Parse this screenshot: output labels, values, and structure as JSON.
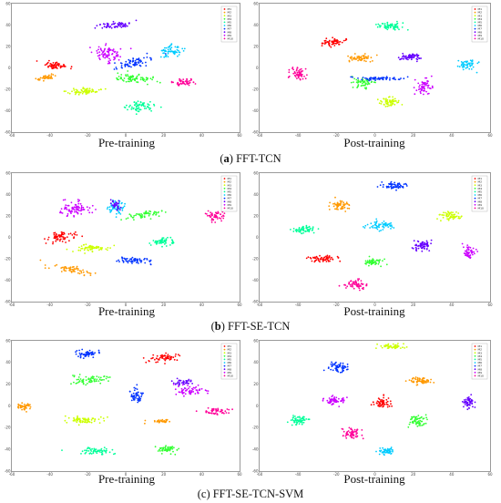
{
  "colors": [
    "#ff0000",
    "#ff9900",
    "#ccff00",
    "#33ff33",
    "#00ff99",
    "#00ccff",
    "#0033ff",
    "#6600ff",
    "#cc00ff",
    "#ff0099"
  ],
  "legend_labels": [
    "M1",
    "M2",
    "M3",
    "M4",
    "M5",
    "M6",
    "M7",
    "M8",
    "M9",
    "M10"
  ],
  "sub_labels": {
    "pre": "Pre-training",
    "post": "Post-training"
  },
  "captions": [
    {
      "letter": "a",
      "text": " FFT-TCN"
    },
    {
      "letter": "b",
      "text": " FFT-SE-TCN"
    },
    {
      "letter": "c",
      "text": " FFT-SE-TCN-SVM"
    }
  ],
  "chart_data": [
    {
      "type": "scatter",
      "model": "FFT-TCN",
      "stage": "Pre-training",
      "xlim": [
        -60,
        60
      ],
      "ylim": [
        -60,
        60
      ],
      "x_ticks": [
        "-60",
        "-40",
        "-20",
        "0",
        "20",
        "40",
        "60"
      ],
      "y_ticks": [
        "60",
        "40",
        "20",
        "0",
        "-20",
        "-40",
        "-60"
      ],
      "clusters": [
        {
          "label": "M1",
          "x": -37,
          "y": 2,
          "sx": 6,
          "sy": 3,
          "rot": -15,
          "n": 60
        },
        {
          "label": "M2",
          "x": -42,
          "y": -9,
          "sx": 6,
          "sy": 2,
          "rot": 20,
          "n": 40
        },
        {
          "label": "M3",
          "x": -22,
          "y": -22,
          "sx": 8,
          "sy": 3,
          "rot": 0,
          "n": 70
        },
        {
          "label": "M4",
          "x": 4,
          "y": -10,
          "sx": 9,
          "sy": 4,
          "rot": -10,
          "n": 80
        },
        {
          "label": "M5",
          "x": 8,
          "y": -36,
          "sx": 7,
          "sy": 4,
          "rot": 0,
          "n": 70
        },
        {
          "label": "M6",
          "x": 24,
          "y": 16,
          "sx": 5,
          "sy": 5,
          "rot": 0,
          "n": 60
        },
        {
          "label": "M7",
          "x": 5,
          "y": 5,
          "sx": 9,
          "sy": 3,
          "rot": 25,
          "n": 70
        },
        {
          "label": "M8",
          "x": -6,
          "y": 40,
          "sx": 8,
          "sy": 3,
          "rot": 10,
          "n": 60
        },
        {
          "label": "M9",
          "x": -10,
          "y": 14,
          "sx": 7,
          "sy": 7,
          "rot": 0,
          "n": 80
        },
        {
          "label": "M10",
          "x": 31,
          "y": -13,
          "sx": 6,
          "sy": 3,
          "rot": 10,
          "n": 50
        }
      ]
    },
    {
      "type": "scatter",
      "model": "FFT-TCN",
      "stage": "Post-training",
      "xlim": [
        -60,
        60
      ],
      "ylim": [
        -60,
        60
      ],
      "x_ticks": [
        "-60",
        "-40",
        "-20",
        "0",
        "20",
        "40",
        "60"
      ],
      "y_ticks": [
        "60",
        "40",
        "20",
        "0",
        "-20",
        "-40",
        "-60"
      ],
      "clusters": [
        {
          "label": "M1",
          "x": -22,
          "y": 24,
          "sx": 6,
          "sy": 3,
          "rot": 15,
          "n": 60
        },
        {
          "label": "M2",
          "x": -7,
          "y": 9,
          "sx": 6,
          "sy": 3,
          "rot": 0,
          "n": 60
        },
        {
          "label": "M3",
          "x": 8,
          "y": -32,
          "sx": 5,
          "sy": 4,
          "rot": 0,
          "n": 60
        },
        {
          "label": "M4",
          "x": -6,
          "y": -14,
          "sx": 6,
          "sy": 4,
          "rot": 0,
          "n": 60
        },
        {
          "label": "M5",
          "x": 8,
          "y": 39,
          "sx": 6,
          "sy": 3,
          "rot": 0,
          "n": 60
        },
        {
          "label": "M6",
          "x": 48,
          "y": 3,
          "sx": 4,
          "sy": 4,
          "rot": 0,
          "n": 50
        },
        {
          "label": "M7",
          "x": 2,
          "y": -10,
          "sx": 12,
          "sy": 1.5,
          "rot": 0,
          "n": 60
        },
        {
          "label": "M8",
          "x": 19,
          "y": 10,
          "sx": 5,
          "sy": 3,
          "rot": 0,
          "n": 60
        },
        {
          "label": "M9",
          "x": 26,
          "y": -17,
          "sx": 4,
          "sy": 6,
          "rot": 0,
          "n": 60
        },
        {
          "label": "M10",
          "x": -40,
          "y": -6,
          "sx": 4,
          "sy": 5,
          "rot": 0,
          "n": 60
        }
      ]
    },
    {
      "type": "scatter",
      "model": "FFT-SE-TCN",
      "stage": "Pre-training",
      "xlim": [
        -60,
        60
      ],
      "ylim": [
        -60,
        60
      ],
      "x_ticks": [
        "-60",
        "-40",
        "-20",
        "0",
        "20",
        "40",
        "60"
      ],
      "y_ticks": [
        "60",
        "40",
        "20",
        "0",
        "-20",
        "-40",
        "-60"
      ],
      "clusters": [
        {
          "label": "M1",
          "x": -35,
          "y": 0,
          "sx": 7,
          "sy": 4,
          "rot": 15,
          "n": 70
        },
        {
          "label": "M2",
          "x": -28,
          "y": -30,
          "sx": 9,
          "sy": 3,
          "rot": -20,
          "n": 60
        },
        {
          "label": "M3",
          "x": -17,
          "y": -10,
          "sx": 8,
          "sy": 3,
          "rot": 0,
          "n": 60
        },
        {
          "label": "M4",
          "x": 10,
          "y": 21,
          "sx": 10,
          "sy": 3,
          "rot": 15,
          "n": 60
        },
        {
          "label": "M5",
          "x": 20,
          "y": -4,
          "sx": 6,
          "sy": 3,
          "rot": 0,
          "n": 60
        },
        {
          "label": "M6",
          "x": -5,
          "y": 28,
          "sx": 4,
          "sy": 6,
          "rot": 0,
          "n": 60
        },
        {
          "label": "M7",
          "x": 4,
          "y": -22,
          "sx": 7,
          "sy": 3,
          "rot": -10,
          "n": 60
        },
        {
          "label": "M8",
          "x": -5,
          "y": 30,
          "sx": 3,
          "sy": 5,
          "rot": 0,
          "n": 30
        },
        {
          "label": "M9",
          "x": -27,
          "y": 26,
          "sx": 7,
          "sy": 6,
          "rot": 0,
          "n": 80
        },
        {
          "label": "M10",
          "x": 47,
          "y": 20,
          "sx": 5,
          "sy": 5,
          "rot": 0,
          "n": 50
        }
      ]
    },
    {
      "type": "scatter",
      "model": "FFT-SE-TCN",
      "stage": "Post-training",
      "xlim": [
        -60,
        60
      ],
      "ylim": [
        -60,
        60
      ],
      "x_ticks": [
        "-60",
        "-40",
        "-20",
        "0",
        "20",
        "40",
        "60"
      ],
      "y_ticks": [
        "60",
        "40",
        "20",
        "0",
        "-20",
        "-40",
        "-60"
      ],
      "clusters": [
        {
          "label": "M1",
          "x": -27,
          "y": -20,
          "sx": 7,
          "sy": 3,
          "rot": 0,
          "n": 60
        },
        {
          "label": "M2",
          "x": -18,
          "y": 30,
          "sx": 5,
          "sy": 4,
          "rot": 0,
          "n": 60
        },
        {
          "label": "M3",
          "x": 39,
          "y": 20,
          "sx": 5,
          "sy": 4,
          "rot": 0,
          "n": 60
        },
        {
          "label": "M4",
          "x": -1,
          "y": -23,
          "sx": 5,
          "sy": 3,
          "rot": 0,
          "n": 60
        },
        {
          "label": "M5",
          "x": -37,
          "y": 7,
          "sx": 5,
          "sy": 3,
          "rot": 0,
          "n": 60
        },
        {
          "label": "M6",
          "x": 3,
          "y": 11,
          "sx": 6,
          "sy": 4,
          "rot": 0,
          "n": 60
        },
        {
          "label": "M7",
          "x": 10,
          "y": 48,
          "sx": 6,
          "sy": 3,
          "rot": 0,
          "n": 60
        },
        {
          "label": "M8",
          "x": 25,
          "y": -8,
          "sx": 4,
          "sy": 5,
          "rot": 0,
          "n": 60
        },
        {
          "label": "M9",
          "x": 49,
          "y": -13,
          "sx": 3,
          "sy": 6,
          "rot": 0,
          "n": 50
        },
        {
          "label": "M10",
          "x": -10,
          "y": -44,
          "sx": 5,
          "sy": 4,
          "rot": 0,
          "n": 60
        }
      ]
    },
    {
      "type": "scatter",
      "model": "FFT-SE-TCN-SVM",
      "stage": "Pre-training",
      "xlim": [
        -60,
        60
      ],
      "ylim": [
        -60,
        60
      ],
      "x_ticks": [
        "-60",
        "-40",
        "-20",
        "0",
        "20",
        "40",
        "60"
      ],
      "y_ticks": [
        "60",
        "40",
        "20",
        "0",
        "-20",
        "-40",
        "-60"
      ],
      "clusters": [
        {
          "label": "M1",
          "x": 20,
          "y": 44,
          "sx": 8,
          "sy": 3,
          "rot": 10,
          "n": 60
        },
        {
          "label": "M2",
          "x": -54,
          "y": 0,
          "sx": 4,
          "sy": 3,
          "rot": 0,
          "n": 40
        },
        {
          "label": "M2",
          "x": 18,
          "y": -14,
          "sx": 6,
          "sy": 1.5,
          "rot": 0,
          "n": 30
        },
        {
          "label": "M3",
          "x": -22,
          "y": -13,
          "sx": 8,
          "sy": 3,
          "rot": 0,
          "n": 70
        },
        {
          "label": "M4",
          "x": -18,
          "y": 24,
          "sx": 8,
          "sy": 4,
          "rot": 0,
          "n": 70
        },
        {
          "label": "M4",
          "x": 22,
          "y": -40,
          "sx": 5,
          "sy": 3,
          "rot": 0,
          "n": 50
        },
        {
          "label": "M5",
          "x": -15,
          "y": -42,
          "sx": 8,
          "sy": 3,
          "rot": -5,
          "n": 60
        },
        {
          "label": "M7",
          "x": -20,
          "y": 48,
          "sx": 6,
          "sy": 3,
          "rot": 0,
          "n": 60
        },
        {
          "label": "M7",
          "x": 6,
          "y": 10,
          "sx": 3,
          "sy": 6,
          "rot": 0,
          "n": 50
        },
        {
          "label": "M8",
          "x": 30,
          "y": 22,
          "sx": 5,
          "sy": 3,
          "rot": 0,
          "n": 40
        },
        {
          "label": "M9",
          "x": 34,
          "y": 14,
          "sx": 8,
          "sy": 4,
          "rot": 0,
          "n": 60
        },
        {
          "label": "M10",
          "x": 48,
          "y": -5,
          "sx": 6,
          "sy": 3,
          "rot": 0,
          "n": 50
        }
      ]
    },
    {
      "type": "scatter",
      "model": "FFT-SE-TCN-SVM",
      "stage": "Post-training",
      "xlim": [
        -60,
        60
      ],
      "ylim": [
        -60,
        60
      ],
      "x_ticks": [
        "-60",
        "-40",
        "-20",
        "0",
        "20",
        "40",
        "60"
      ],
      "y_ticks": [
        "60",
        "40",
        "20",
        "0",
        "-20",
        "-40",
        "-60"
      ],
      "clusters": [
        {
          "label": "M1",
          "x": 4,
          "y": 3,
          "sx": 4,
          "sy": 6,
          "rot": 0,
          "n": 60
        },
        {
          "label": "M2",
          "x": 24,
          "y": 23,
          "sx": 5,
          "sy": 3,
          "rot": 0,
          "n": 60
        },
        {
          "label": "M3",
          "x": 9,
          "y": 55,
          "sx": 6,
          "sy": 2,
          "rot": 0,
          "n": 50
        },
        {
          "label": "M4",
          "x": 22,
          "y": -14,
          "sx": 4,
          "sy": 5,
          "rot": 0,
          "n": 60
        },
        {
          "label": "M5",
          "x": -40,
          "y": -13,
          "sx": 4,
          "sy": 4,
          "rot": 0,
          "n": 60
        },
        {
          "label": "M6",
          "x": 6,
          "y": -42,
          "sx": 4,
          "sy": 3,
          "rot": 0,
          "n": 50
        },
        {
          "label": "M7",
          "x": -19,
          "y": 35,
          "sx": 5,
          "sy": 4,
          "rot": 0,
          "n": 60
        },
        {
          "label": "M8",
          "x": 49,
          "y": 4,
          "sx": 3,
          "sy": 5,
          "rot": 0,
          "n": 50
        },
        {
          "label": "M9",
          "x": -21,
          "y": 5,
          "sx": 5,
          "sy": 4,
          "rot": 0,
          "n": 60
        },
        {
          "label": "M10",
          "x": -12,
          "y": -25,
          "sx": 5,
          "sy": 4,
          "rot": -30,
          "n": 60
        }
      ]
    }
  ]
}
